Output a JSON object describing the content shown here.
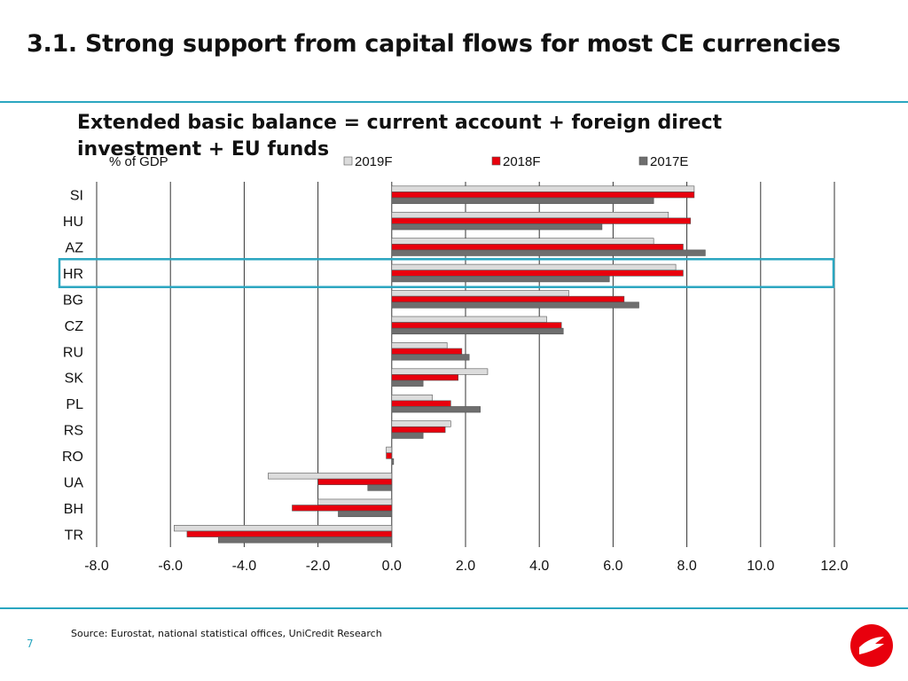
{
  "slide": {
    "title": "3.1. Strong support from capital flows for most CE currencies",
    "subtitle": "Extended basic balance = current account + foreign direct investment + EU funds",
    "source": "Source: Eurostat, national statistical offices, UniCredit Research",
    "page_number": "7"
  },
  "colors": {
    "accent": "#2aa6c0",
    "series_2019F": "#dcdcdc",
    "series_2018F": "#e8000d",
    "series_2017E": "#6e6e6e"
  },
  "chart_data": {
    "type": "bar",
    "orientation": "horizontal",
    "unit_label": "% of GDP",
    "categories": [
      "SI",
      "HU",
      "AZ",
      "HR",
      "BG",
      "CZ",
      "RU",
      "SK",
      "PL",
      "RS",
      "RO",
      "UA",
      "BH",
      "TR"
    ],
    "series": [
      {
        "name": "2019F",
        "color": "#dcdcdc",
        "values": [
          8.2,
          7.5,
          7.1,
          7.7,
          4.8,
          4.2,
          1.5,
          2.6,
          1.1,
          1.6,
          -0.15,
          -3.35,
          -2.0,
          -5.9
        ]
      },
      {
        "name": "2018F",
        "color": "#e8000d",
        "values": [
          8.2,
          8.1,
          7.9,
          7.9,
          6.3,
          4.6,
          1.9,
          1.8,
          1.6,
          1.45,
          -0.15,
          -2.0,
          -2.7,
          -5.55
        ]
      },
      {
        "name": "2017E",
        "color": "#6e6e6e",
        "values": [
          7.1,
          5.7,
          8.5,
          5.9,
          6.7,
          4.65,
          2.1,
          0.85,
          2.4,
          0.85,
          0.05,
          -0.65,
          -1.45,
          -4.7
        ]
      }
    ],
    "xlim": [
      -8.0,
      12.0
    ],
    "tick_labels": [
      "-8.0",
      "-6.0",
      "-4.0",
      "-2.0",
      "0.0",
      "2.0",
      "4.0",
      "6.0",
      "8.0",
      "10.0",
      "12.0"
    ],
    "grid": "vertical",
    "legend_position": "top",
    "highlight_category": "HR"
  }
}
